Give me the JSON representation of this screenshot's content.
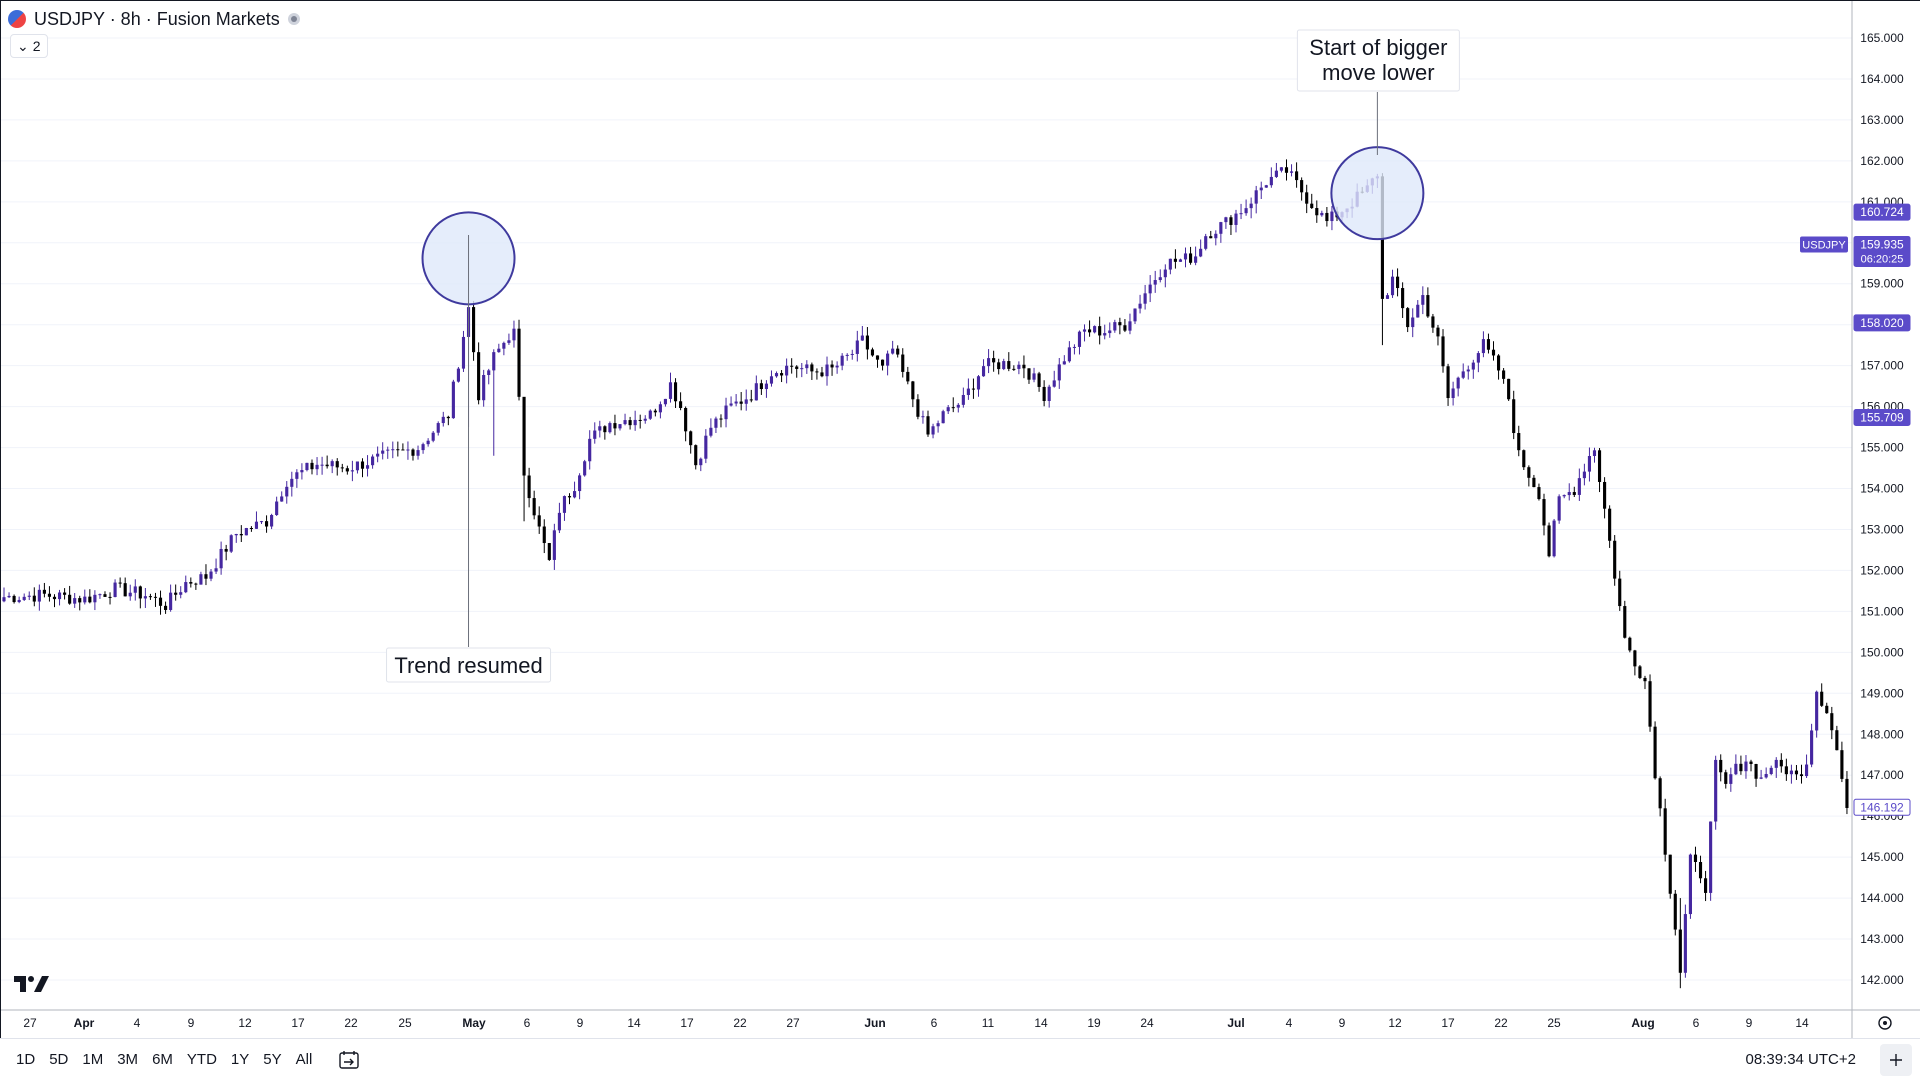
{
  "header": {
    "title": "USDJPY · 8h · Fusion Markets",
    "indicator_count": "2"
  },
  "bottom_bar": {
    "ranges": [
      "1D",
      "5D",
      "1M",
      "3M",
      "6M",
      "YTD",
      "1Y",
      "5Y",
      "All"
    ],
    "clock": "08:39:34 UTC+2"
  },
  "icons": {
    "flag": "usd-jpy-flag-icon",
    "status": "market-status-icon",
    "goto": "go-to-date-icon",
    "logo": "tradingview-logo-icon",
    "settings": "chart-settings-icon",
    "corner": "scale-toggle-icon"
  },
  "colors": {
    "bull": "#4527a0",
    "bear": "#000000",
    "accent": "#5b4bc9",
    "highlight_fill": "#dfe8fa",
    "highlight_stroke": "#3f3a9e",
    "grid": "#f0f3fa"
  },
  "chart_data": {
    "type": "candlestick",
    "symbol": "USDJPY",
    "timeframe": "8h",
    "y_ticks": [
      "142.000",
      "143.000",
      "144.000",
      "145.000",
      "146.000",
      "147.000",
      "148.000",
      "149.000",
      "150.000",
      "151.000",
      "152.000",
      "153.000",
      "154.000",
      "155.000",
      "156.000",
      "157.000",
      "158.000",
      "159.000",
      "160.000",
      "161.000",
      "162.000",
      "163.000",
      "164.000",
      "165.000"
    ],
    "ylim": [
      141.3,
      166.0
    ],
    "x_ticks": [
      "27",
      "Apr",
      "4",
      "9",
      "12",
      "17",
      "22",
      "25",
      "May",
      "6",
      "9",
      "14",
      "17",
      "22",
      "27",
      "Jun",
      "6",
      "11",
      "14",
      "19",
      "24",
      "Jul",
      "4",
      "9",
      "12",
      "17",
      "22",
      "25",
      "Aug",
      "6",
      "9",
      "14"
    ],
    "price_labels": [
      {
        "name": "",
        "value": "160.724"
      },
      {
        "name": "USDJPY",
        "value": "159.935",
        "sub": "06:20:25"
      },
      {
        "name": "",
        "value": "158.020"
      },
      {
        "name": "",
        "value": "155.709"
      },
      {
        "name": "",
        "value": "146.192"
      }
    ],
    "anchors": [
      [
        0,
        151.35
      ],
      [
        8,
        151.4
      ],
      [
        16,
        151.3
      ],
      [
        22,
        151.55
      ],
      [
        28,
        151.4
      ],
      [
        32,
        151.15
      ],
      [
        36,
        151.7
      ],
      [
        40,
        151.85
      ],
      [
        46,
        152.9
      ],
      [
        52,
        153.2
      ],
      [
        56,
        154.2
      ],
      [
        62,
        154.6
      ],
      [
        68,
        154.5
      ],
      [
        76,
        154.8
      ],
      [
        82,
        155.0
      ],
      [
        88,
        155.8
      ],
      [
        92,
        158.4
      ],
      [
        94,
        156.3
      ],
      [
        97,
        157.2
      ],
      [
        100,
        157.75
      ],
      [
        101,
        157.8
      ],
      [
        103,
        154.4
      ],
      [
        106,
        153.0
      ],
      [
        108,
        152.2
      ],
      [
        110,
        153.5
      ],
      [
        113,
        154.1
      ],
      [
        116,
        155.2
      ],
      [
        120,
        155.6
      ],
      [
        124,
        155.7
      ],
      [
        128,
        155.8
      ],
      [
        132,
        156.55
      ],
      [
        134,
        156.0
      ],
      [
        137,
        154.6
      ],
      [
        140,
        155.5
      ],
      [
        144,
        156.0
      ],
      [
        148,
        156.3
      ],
      [
        152,
        156.85
      ],
      [
        156,
        157.0
      ],
      [
        160,
        156.85
      ],
      [
        164,
        156.9
      ],
      [
        168,
        157.3
      ],
      [
        170,
        157.6
      ],
      [
        174,
        156.9
      ],
      [
        176,
        157.4
      ],
      [
        180,
        156.2
      ],
      [
        183,
        155.3
      ],
      [
        186,
        155.8
      ],
      [
        190,
        156.15
      ],
      [
        194,
        157.0
      ],
      [
        198,
        157.05
      ],
      [
        202,
        157.0
      ],
      [
        206,
        156.3
      ],
      [
        210,
        157.2
      ],
      [
        214,
        157.85
      ],
      [
        218,
        157.85
      ],
      [
        222,
        158.0
      ],
      [
        226,
        158.8
      ],
      [
        230,
        159.5
      ],
      [
        234,
        159.6
      ],
      [
        236,
        159.7
      ],
      [
        238,
        160.2
      ],
      [
        242,
        160.5
      ],
      [
        246,
        160.9
      ],
      [
        250,
        161.5
      ],
      [
        254,
        161.75
      ],
      [
        258,
        161.1
      ],
      [
        262,
        160.5
      ],
      [
        266,
        160.9
      ],
      [
        270,
        161.3
      ],
      [
        272,
        161.7
      ],
      [
        273,
        158.6
      ],
      [
        275,
        159.1
      ],
      [
        278,
        158.0
      ],
      [
        281,
        158.7
      ],
      [
        284,
        157.6
      ],
      [
        286,
        156.2
      ],
      [
        289,
        156.9
      ],
      [
        293,
        157.5
      ],
      [
        296,
        156.9
      ],
      [
        298,
        156.2
      ],
      [
        300,
        154.8
      ],
      [
        304,
        153.9
      ],
      [
        306,
        152.4
      ],
      [
        308,
        153.7
      ],
      [
        311,
        154.0
      ],
      [
        314,
        154.8
      ],
      [
        315,
        155.0
      ],
      [
        317,
        153.5
      ],
      [
        319,
        151.9
      ],
      [
        321,
        150.3
      ],
      [
        323,
        149.8
      ],
      [
        325,
        149.3
      ],
      [
        327,
        147.1
      ],
      [
        329,
        145.2
      ],
      [
        331,
        143.3
      ],
      [
        332,
        142.2
      ],
      [
        334,
        144.9
      ],
      [
        336,
        144.6
      ],
      [
        337,
        144.3
      ],
      [
        339,
        147.2
      ],
      [
        341,
        146.7
      ],
      [
        342,
        147.0
      ],
      [
        345,
        147.4
      ],
      [
        348,
        146.9
      ],
      [
        350,
        147.25
      ],
      [
        353,
        147.15
      ],
      [
        355,
        146.95
      ],
      [
        357,
        147.35
      ],
      [
        359,
        149.1
      ],
      [
        361,
        148.6
      ],
      [
        363,
        147.6
      ],
      [
        365,
        146.2
      ]
    ],
    "wicks": [
      {
        "i": 92,
        "high": 158.4,
        "low": 155.5
      },
      {
        "i": 97,
        "high": 157.4,
        "low": 154.8
      },
      {
        "i": 103,
        "high": 154.6,
        "low": 153.2
      },
      {
        "i": 273,
        "high": 161.7,
        "low": 157.5
      },
      {
        "i": 332,
        "high": 144.0,
        "low": 141.8
      }
    ],
    "annotations": [
      {
        "text": "Trend resumed",
        "x_index": 92,
        "price": 158.4
      },
      {
        "text": "Start of bigger move lower",
        "lines": [
          "Start of bigger",
          "move lower"
        ],
        "x_index": 272,
        "price": 161.7
      }
    ]
  }
}
